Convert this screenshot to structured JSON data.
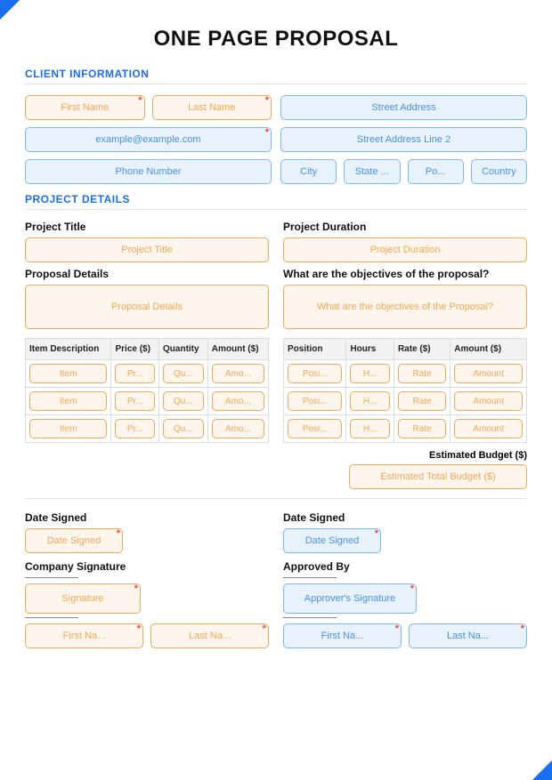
{
  "title": "ONE PAGE PROPOSAL",
  "sections": {
    "client": "CLIENT INFORMATION",
    "project": "PROJECT DETAILS"
  },
  "client": {
    "first_name": "First Name",
    "last_name": "Last Name",
    "email": "example@example.com",
    "phone": "Phone Number",
    "street": "Street Address",
    "street2": "Street Address Line 2",
    "city": "City",
    "state": "State ...",
    "postal": "Po...",
    "country": "Country"
  },
  "project": {
    "title_lbl": "Project Title",
    "title_ph": "Project Title",
    "duration_lbl": "Project Duration",
    "duration_ph": "Project Duration",
    "details_lbl": "Proposal Details",
    "details_ph": "Proposal Details",
    "objectives_lbl": "What are the objectives of the proposal?",
    "objectives_ph": "What are the objectives of the Proposal?"
  },
  "items_table": {
    "headers": [
      "Item Description",
      "Price ($)",
      "Quantity",
      "Amount ($)"
    ],
    "cells": [
      "Item",
      "Pr...",
      "Qu...",
      "Amo..."
    ]
  },
  "labor_table": {
    "headers": [
      "Position",
      "Hours",
      "Rate ($)",
      "Amount ($)"
    ],
    "cells": [
      "Posi...",
      "H...",
      "Rate",
      "Amount"
    ]
  },
  "budget": {
    "lbl": "Estimated Budget ($)",
    "ph": "Estimated Total Budget ($)"
  },
  "sig": {
    "date_lbl": "Date Signed",
    "date_ph": "Date Signed",
    "company_lbl": "Company Signature",
    "company_ph": "Signature",
    "approved_lbl": "Approved By",
    "approved_ph": "Approver's Signature",
    "fn": "First Na...",
    "ln": "Last Na..."
  }
}
